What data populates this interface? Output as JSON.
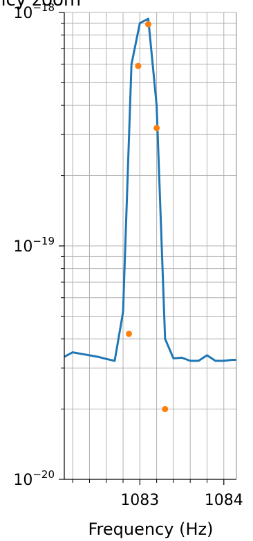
{
  "chart_data": {
    "type": "line",
    "title": "ncy zoom",
    "xlabel": "Frequency (Hz)",
    "ylabel": "",
    "yscale": "log",
    "xlim": [
      1082.1,
      1084.15
    ],
    "ylim": [
      1e-20,
      1e-18
    ],
    "grid": true,
    "colors": {
      "line": "#1f77b4",
      "points": "#ff7f0e",
      "grid": "#b0b0b0"
    },
    "x_ticks": [
      {
        "value": 1083,
        "label": "1083"
      },
      {
        "value": 1084,
        "label": "1084"
      }
    ],
    "y_ticks": [
      {
        "value": 1e-18,
        "base": "10",
        "exp": "−18"
      },
      {
        "value": 1e-19,
        "base": "10",
        "exp": "−19"
      },
      {
        "value": 1e-20,
        "base": "10",
        "exp": "−20"
      }
    ],
    "series": [
      {
        "kind": "line",
        "x": [
          1082.1,
          1082.2,
          1082.3,
          1082.4,
          1082.5,
          1082.6,
          1082.7,
          1082.8,
          1082.9,
          1083.0,
          1083.1,
          1083.2,
          1083.3,
          1083.4,
          1083.5,
          1083.6,
          1083.7,
          1083.8,
          1083.9,
          1084.0,
          1084.1,
          1084.15
        ],
        "y": [
          3.35e-20,
          3.5e-20,
          3.45e-20,
          3.4e-20,
          3.35e-20,
          3.28e-20,
          3.22e-20,
          5.2e-20,
          6e-19,
          9e-19,
          9.4e-19,
          4e-19,
          4e-20,
          3.3e-20,
          3.32e-20,
          3.22e-20,
          3.22e-20,
          3.4e-20,
          3.22e-20,
          3.22e-20,
          3.25e-20,
          3.25e-20
        ]
      },
      {
        "kind": "scatter",
        "x": [
          1082.87,
          1082.98,
          1083.1,
          1083.2,
          1083.3
        ],
        "y": [
          4.2e-20,
          5.9e-19,
          8.9e-19,
          3.2e-19,
          2e-20
        ]
      }
    ]
  }
}
